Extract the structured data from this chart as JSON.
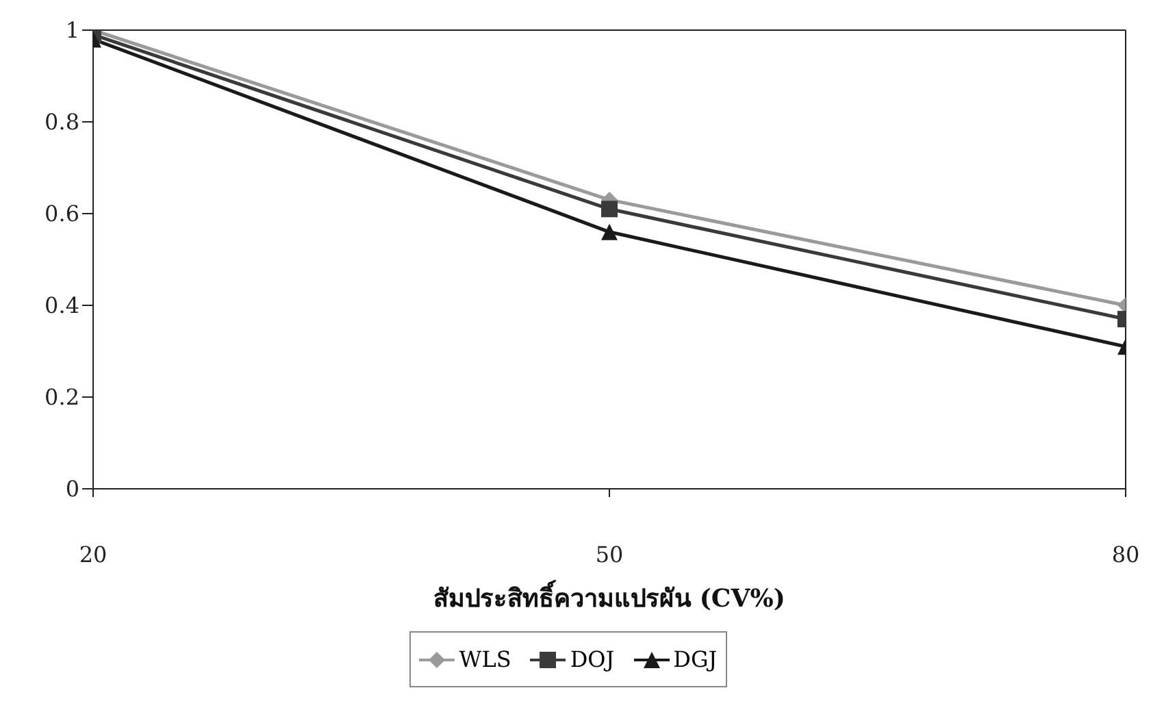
{
  "chart_data": {
    "type": "line",
    "xlabel": "สัมประสิทธิ์ความแปรผัน (CV%)",
    "x": [
      20,
      50,
      80
    ],
    "xlim": [
      20,
      80
    ],
    "xticks": [
      20,
      50,
      80
    ],
    "ylim": [
      0,
      1
    ],
    "yticks": [
      0,
      0.2,
      0.4,
      0.6,
      0.8,
      1
    ],
    "grid": false,
    "legend": "bottom",
    "series": [
      {
        "name": "WLS",
        "color": "#9a9a9a",
        "marker": "diamond",
        "values": [
          1,
          0.63,
          0.4
        ]
      },
      {
        "name": "DOJ",
        "color": "#3a3a3a",
        "marker": "square",
        "values": [
          0.99,
          0.61,
          0.37
        ]
      },
      {
        "name": "DGJ",
        "color": "#1a1a1a",
        "marker": "triangle",
        "values": [
          0.98,
          0.56,
          0.31
        ]
      }
    ]
  }
}
